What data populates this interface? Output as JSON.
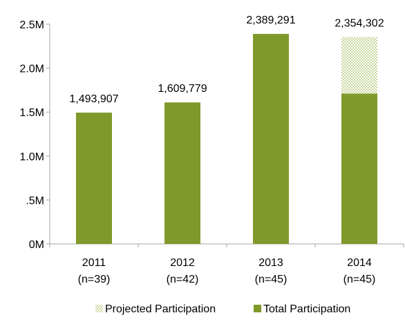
{
  "chart_data": {
    "type": "bar",
    "categories": [
      "2011\n(n=39)",
      "2012\n(n=42)",
      "2013\n(n=45)",
      "2014\n(n=45)"
    ],
    "category_lines": [
      [
        "2011",
        "(n=39)"
      ],
      [
        "2012",
        "(n=42)"
      ],
      [
        "2013",
        "(n=45)"
      ],
      [
        "2014",
        "(n=45)"
      ]
    ],
    "series": [
      {
        "name": "Total Participation",
        "values": [
          1493907,
          1609779,
          2389291,
          1710000
        ],
        "color": "#7f9a2a",
        "pattern": "solid"
      },
      {
        "name": "Projected Participation",
        "values": [
          0,
          0,
          0,
          644302
        ],
        "color": "#7f9a2a",
        "pattern": "checker"
      }
    ],
    "stacked": true,
    "data_labels": [
      "1,493,907",
      "1,609,779",
      "2,389,291",
      "2,354,302"
    ],
    "yticks": [
      0,
      500000,
      1000000,
      1500000,
      2000000,
      2500000
    ],
    "ytick_labels": [
      "0M",
      ".5M",
      "1.0M",
      "1.5M",
      "2.0M",
      "2.5M"
    ],
    "ylim": [
      0,
      2500000
    ],
    "title": "",
    "xlabel": "",
    "ylabel": "",
    "grid": false,
    "legend_position": "bottom",
    "legend": [
      {
        "label": "Projected Participation",
        "pattern": "checker"
      },
      {
        "label": "Total Participation",
        "pattern": "solid"
      }
    ]
  }
}
